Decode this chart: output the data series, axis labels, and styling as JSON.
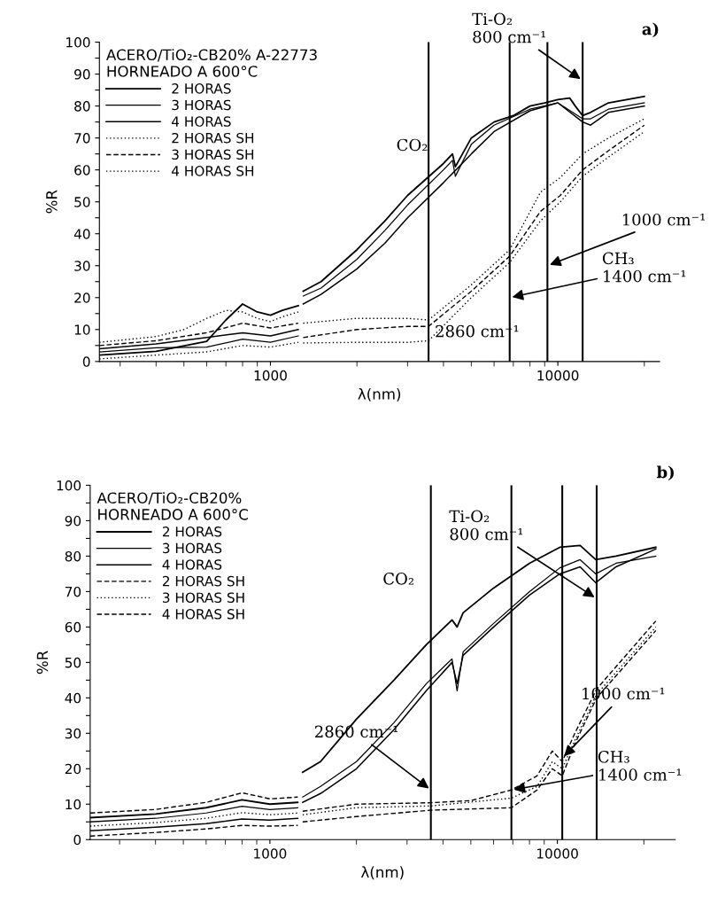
{
  "chart_data": [
    {
      "type": "line",
      "title": "a)",
      "legend_title": "ACERO/TiO₂-CB20% A-22773\nHORNEADO A 600°C",
      "xlabel": "λ(nm)",
      "ylabel": "%R",
      "log": "x",
      "grid": false,
      "legend": "top left",
      "xlim": [
        254,
        22600
      ],
      "xticks": [
        1000,
        10000
      ],
      "ylim": [
        0,
        100
      ],
      "yticks": [
        0,
        {
          "value": 5,
          "label": null
        },
        10,
        {
          "value": 15,
          "label": null
        },
        20,
        {
          "value": 25,
          "label": null
        },
        30,
        {
          "value": 35,
          "label": null
        },
        40,
        {
          "value": 45,
          "label": null
        },
        50,
        {
          "value": 55,
          "label": null
        },
        60,
        {
          "value": 65,
          "label": null
        },
        70,
        {
          "value": 75,
          "label": null
        },
        80,
        {
          "value": 85,
          "label": null
        },
        90,
        {
          "value": 95,
          "label": null
        },
        100
      ],
      "ref_lines": [
        {
          "axis": "x",
          "value": 3550,
          "color": "#000000",
          "line_style": "solid"
        },
        {
          "axis": "x",
          "value": 6800,
          "color": "#000000",
          "line_style": "solid"
        },
        {
          "axis": "x",
          "value": 9200,
          "color": "#000000",
          "line_style": "solid"
        },
        {
          "axis": "x",
          "value": 12200,
          "color": "#000000",
          "line_style": "solid"
        }
      ],
      "annotations": [
        "CO₂",
        {
          "text": "Ti-O₂\n800 cm⁻¹",
          "x": 12200,
          "y": 88
        },
        {
          "text": "1000 cm⁻¹",
          "x": 9200,
          "y": 30
        },
        {
          "text": "CH₃\n1400 cm⁻¹",
          "x": 6800,
          "y": 20
        },
        {
          "text": "2860 cm⁻¹",
          "x": 3550,
          "y": 2
        }
      ],
      "series": [
        {
          "name": "2 HORAS",
          "color": "#000000",
          "line_style": "solid",
          "x": [
            254,
            400,
            600,
            700,
            800,
            900,
            1000,
            1100,
            1250,
            1270,
            1300,
            1500,
            2000,
            2500,
            3000,
            4000,
            4300,
            4400,
            5000,
            6000,
            7000,
            8000,
            9000,
            10000,
            11000,
            11500,
            12200,
            13000,
            15000,
            20000
          ],
          "values": [
            2,
            3.2,
            6.3,
            13,
            18,
            15.5,
            14.5,
            16,
            17.5,
            null,
            22,
            25,
            35,
            44,
            52,
            62,
            65,
            61,
            70,
            75,
            77,
            80,
            81,
            82,
            82.5,
            80,
            77,
            78,
            81,
            83
          ]
        },
        {
          "name": "3 HORAS",
          "color": "#000000",
          "line_style": "solid",
          "x": [
            254,
            400,
            600,
            800,
            1000,
            1250,
            1270,
            1300,
            1500,
            2000,
            2500,
            3000,
            4000,
            4300,
            4400,
            5000,
            6000,
            8000,
            10000,
            12200,
            13000,
            15000,
            20000
          ],
          "values": [
            3,
            4.3,
            4.5,
            7,
            6,
            8,
            null,
            20.5,
            23,
            32,
            41,
            49,
            60,
            63,
            58,
            68,
            74,
            79,
            81,
            76,
            76,
            79,
            81
          ]
        },
        {
          "name": "4 HORAS",
          "color": "#000000",
          "line_style": "solid",
          "x": [
            254,
            400,
            600,
            800,
            1000,
            1250,
            1270,
            1300,
            1500,
            2000,
            2500,
            3000,
            4000,
            5000,
            6000,
            8000,
            10000,
            12200,
            13000,
            15000,
            20000
          ],
          "values": [
            4,
            5.5,
            7.5,
            9,
            8,
            10,
            null,
            18,
            21,
            29,
            37,
            45,
            56,
            65,
            72,
            78.5,
            81,
            75,
            74,
            78,
            80
          ]
        },
        {
          "name": "2 HORAS SH",
          "color": "#000000",
          "line_style": "dotted",
          "x": [
            254,
            400,
            500,
            600,
            700,
            800,
            900,
            1000,
            1100,
            1250,
            1270,
            1300,
            2000,
            3000,
            3550,
            5000,
            6800,
            8700,
            10200,
            12200,
            15000,
            20000
          ],
          "values": [
            6,
            7.8,
            10,
            13.5,
            16,
            15.5,
            13.5,
            12.5,
            14,
            15.5,
            null,
            12,
            13.5,
            13.5,
            13,
            24,
            35,
            53,
            57.6,
            65,
            70,
            76
          ]
        },
        {
          "name": "3 HORAS SH",
          "color": "#000000",
          "line_style": "dashed",
          "x": [
            254,
            400,
            600,
            800,
            1000,
            1250,
            1270,
            1300,
            2000,
            3000,
            3550,
            5000,
            6800,
            8700,
            10200,
            12200,
            15000,
            20000
          ],
          "values": [
            5,
            6.5,
            9,
            12,
            10.5,
            12,
            null,
            7.5,
            10,
            11,
            11,
            22,
            33,
            47,
            52,
            60,
            66,
            74
          ]
        },
        {
          "name": "4 HORAS SH",
          "color": "#000000",
          "line_style": "dotted",
          "x": [
            254,
            400,
            600,
            800,
            1000,
            1250,
            1270,
            1300,
            2000,
            3000,
            3550,
            5000,
            6800,
            8700,
            10200,
            12200,
            15000,
            20000
          ],
          "values": [
            0.8,
            2,
            3,
            5,
            4.5,
            6,
            null,
            5.8,
            6,
            6,
            6.5,
            20,
            31,
            44,
            50,
            58,
            64,
            72
          ]
        }
      ]
    },
    {
      "type": "line",
      "title": "b)",
      "legend_title": "ACERO/TiO₂-CB20%\nHORNEADO A 600°C",
      "xlabel": "λ(nm)",
      "ylabel": "%R",
      "log": "x",
      "grid": false,
      "legend": "top left",
      "xlim": [
        237,
        25700
      ],
      "xticks": [
        1000,
        10000
      ],
      "ylim": [
        0,
        100
      ],
      "yticks": [
        0,
        {
          "value": 5,
          "label": null
        },
        10,
        {
          "value": 15,
          "label": null
        },
        20,
        {
          "value": 25,
          "label": null
        },
        30,
        {
          "value": 35,
          "label": null
        },
        40,
        {
          "value": 45,
          "label": null
        },
        50,
        {
          "value": 55,
          "label": null
        },
        60,
        {
          "value": 65,
          "label": null
        },
        70,
        {
          "value": 75,
          "label": null
        },
        80,
        {
          "value": 85,
          "label": null
        },
        90,
        {
          "value": 95,
          "label": null
        },
        100
      ],
      "ref_lines": [
        {
          "axis": "x",
          "value": 3630,
          "color": "#000000",
          "line_style": "solid"
        },
        {
          "axis": "x",
          "value": 6920,
          "color": "#000000",
          "line_style": "solid"
        },
        {
          "axis": "x",
          "value": 10400,
          "color": "#000000",
          "line_style": "solid"
        },
        {
          "axis": "x",
          "value": 13700,
          "color": "#000000",
          "line_style": "solid"
        }
      ],
      "annotations": [
        "CO₂",
        {
          "text": "Ti-O₂\n800 cm⁻¹",
          "x": 13700,
          "y": 68
        },
        {
          "text": "1000 cm⁻¹",
          "x": 10400,
          "y": 23
        },
        {
          "text": "CH₃\n1400 cm⁻¹",
          "x": 6920,
          "y": 14
        },
        {
          "text": "2860 cm⁻¹",
          "x": 3630,
          "y": 14
        }
      ],
      "series": [
        {
          "name": "2 HORAS",
          "color": "#000000",
          "line_style": "solid",
          "x": [
            237,
            400,
            600,
            800,
            1000,
            1250,
            1270,
            1300,
            1500,
            2000,
            2700,
            3500,
            4300,
            4480,
            4700,
            6000,
            8000,
            10200,
            12000,
            13600,
            16000,
            22000
          ],
          "values": [
            6.2,
            7.2,
            9,
            11.2,
            10,
            10.5,
            null,
            19,
            22,
            34,
            45,
            55,
            62,
            60,
            64,
            71,
            78,
            82.5,
            83,
            79,
            80,
            82.5
          ]
        },
        {
          "name": "3 HORAS",
          "color": "#000000",
          "line_style": "solid",
          "x": [
            237,
            400,
            600,
            800,
            1000,
            1250,
            1270,
            1300,
            1500,
            2000,
            2700,
            3500,
            4300,
            4480,
            4700,
            6000,
            8000,
            10200,
            12000,
            13600,
            16000,
            22000
          ],
          "values": [
            5,
            6,
            7.5,
            9.4,
            8.5,
            9,
            null,
            12,
            15,
            22,
            33,
            44,
            51,
            42,
            53,
            61,
            70,
            76.7,
            79,
            75,
            78,
            80
          ]
        },
        {
          "name": "4 HORAS",
          "color": "#000000",
          "line_style": "solid",
          "x": [
            237,
            400,
            600,
            800,
            1000,
            1250,
            1270,
            1300,
            1500,
            2000,
            2700,
            3500,
            4300,
            4480,
            4700,
            6000,
            8000,
            10200,
            12000,
            13600,
            16000,
            22000
          ],
          "values": [
            2.5,
            3.5,
            4.5,
            5.8,
            5.5,
            6,
            null,
            10.5,
            13,
            20,
            31,
            42,
            50,
            44,
            52,
            60,
            69,
            75,
            77,
            72.5,
            77,
            82
          ]
        },
        {
          "name": "2 HORAS SH",
          "color": "#000000",
          "line_style": "dashed",
          "x": [
            237,
            400,
            600,
            800,
            1000,
            1250,
            1270,
            1300,
            2000,
            3630,
            5000,
            6920,
            8500,
            9600,
            10400,
            11500,
            13700,
            22000
          ],
          "values": [
            7.5,
            8.5,
            10.5,
            13.2,
            11.5,
            12,
            null,
            8,
            10,
            10.4,
            11,
            14,
            18,
            25,
            22,
            30,
            42.5,
            61.7
          ]
        },
        {
          "name": "3 HORAS SH",
          "color": "#000000",
          "line_style": "dotted",
          "x": [
            237,
            400,
            600,
            800,
            1000,
            1250,
            1270,
            1300,
            2000,
            3630,
            6920,
            8500,
            9600,
            10400,
            11500,
            13700,
            22000
          ],
          "values": [
            3.8,
            4.8,
            6,
            7.6,
            7,
            7.5,
            null,
            7,
            9,
            9.5,
            11.7,
            15,
            22,
            20,
            28,
            41,
            60
          ]
        },
        {
          "name": "4 HORAS SH",
          "color": "#000000",
          "line_style": "dashed",
          "x": [
            237,
            400,
            600,
            800,
            1000,
            1250,
            1270,
            1300,
            2000,
            3630,
            6920,
            8500,
            9600,
            10400,
            11500,
            13700,
            22000
          ],
          "values": [
            1,
            2,
            3,
            4,
            3.8,
            4,
            null,
            5,
            6.5,
            8.3,
            9,
            14,
            20,
            18,
            27,
            40,
            59
          ]
        }
      ]
    }
  ]
}
